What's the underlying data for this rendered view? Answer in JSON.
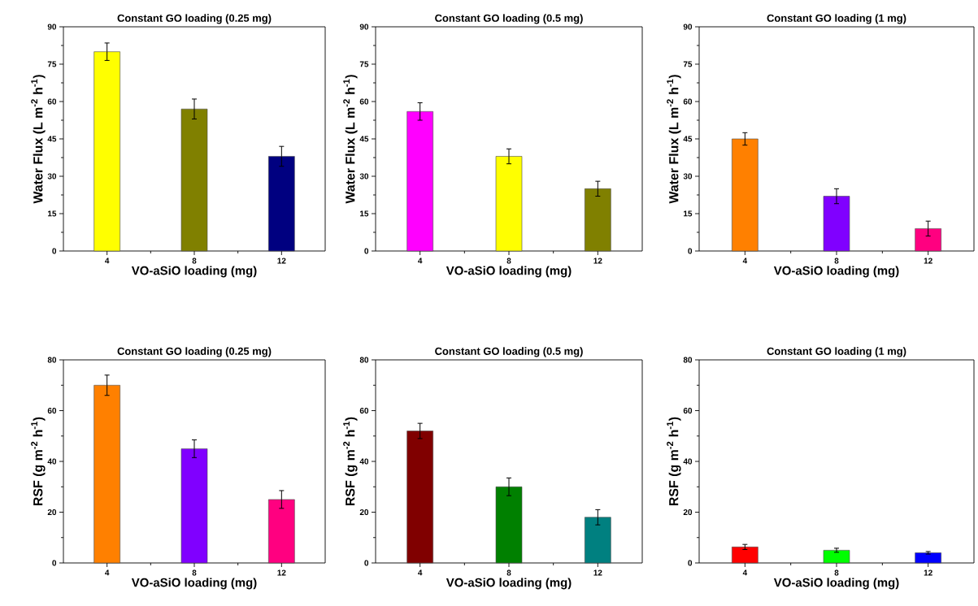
{
  "chart_data": [
    {
      "type": "bar",
      "title": "Constant GO loading (0.25 mg)",
      "xlabel": "VO-aSiO loading (mg)",
      "ylabel": "Water Flux (L m$^{-2}$ h$^{-1}$)",
      "categories": [
        "4",
        "8",
        "12"
      ],
      "values": [
        80,
        57,
        38
      ],
      "errors": [
        3.5,
        4,
        4
      ],
      "colors": [
        "#ffff00",
        "#808000",
        "#000080"
      ],
      "ylim": [
        0,
        90
      ],
      "yticks": [
        0,
        15,
        30,
        45,
        60,
        75,
        90
      ]
    },
    {
      "type": "bar",
      "title": "Constant GO loading (0.5 mg)",
      "xlabel": "VO-aSiO loading (mg)",
      "ylabel": "Water Flux (L m$^{-2}$ h$^{-1}$)",
      "categories": [
        "4",
        "8",
        "12"
      ],
      "values": [
        56,
        38,
        25
      ],
      "errors": [
        3.5,
        3,
        3
      ],
      "colors": [
        "#ff00ff",
        "#ffff00",
        "#808000"
      ],
      "ylim": [
        0,
        90
      ],
      "yticks": [
        0,
        15,
        30,
        45,
        60,
        75,
        90
      ]
    },
    {
      "type": "bar",
      "title": "Constant GO loading (1 mg)",
      "xlabel": "VO-aSiO loading (mg)",
      "ylabel": "Water Flux (L m$^{-2}$ h$^{-1}$)",
      "categories": [
        "4",
        "8",
        "12"
      ],
      "values": [
        45,
        22,
        9
      ],
      "errors": [
        2.5,
        3,
        3
      ],
      "colors": [
        "#ff8000",
        "#8000ff",
        "#ff0080"
      ],
      "ylim": [
        0,
        90
      ],
      "yticks": [
        0,
        15,
        30,
        45,
        60,
        75,
        90
      ]
    },
    {
      "type": "bar",
      "title": "Constant GO loading (0.25 mg)",
      "xlabel": "VO-aSiO loading (mg)",
      "ylabel": "RSF (g m$^{-2}$ h$^{-1}$)",
      "categories": [
        "4",
        "8",
        "12"
      ],
      "values": [
        70,
        45,
        25
      ],
      "errors": [
        4,
        3.5,
        3.5
      ],
      "colors": [
        "#ff8000",
        "#8000ff",
        "#ff0080"
      ],
      "ylim": [
        0,
        80
      ],
      "yticks": [
        0,
        20,
        40,
        60,
        80
      ]
    },
    {
      "type": "bar",
      "title": "Constant GO loading (0.5 mg)",
      "xlabel": "VO-aSiO loading (mg)",
      "ylabel": "RSF (g m$^{-2}$ h$^{-1}$)",
      "categories": [
        "4",
        "8",
        "12"
      ],
      "values": [
        52,
        30,
        18
      ],
      "errors": [
        3,
        3.5,
        3
      ],
      "colors": [
        "#800000",
        "#008000",
        "#008080"
      ],
      "ylim": [
        0,
        80
      ],
      "yticks": [
        0,
        20,
        40,
        60,
        80
      ]
    },
    {
      "type": "bar",
      "title": "Constant GO loading (1 mg)",
      "xlabel": "VO-aSiO loading (mg)",
      "ylabel": "RSF (g m$^{-2}$ h$^{-1}$)",
      "categories": [
        "4",
        "8",
        "12"
      ],
      "values": [
        6.3,
        5,
        4
      ],
      "errors": [
        1,
        0.8,
        0.5
      ],
      "colors": [
        "#ff0000",
        "#00ff00",
        "#0000ff"
      ],
      "ylim": [
        0,
        80
      ],
      "yticks": [
        0,
        20,
        40,
        60,
        80
      ]
    }
  ]
}
